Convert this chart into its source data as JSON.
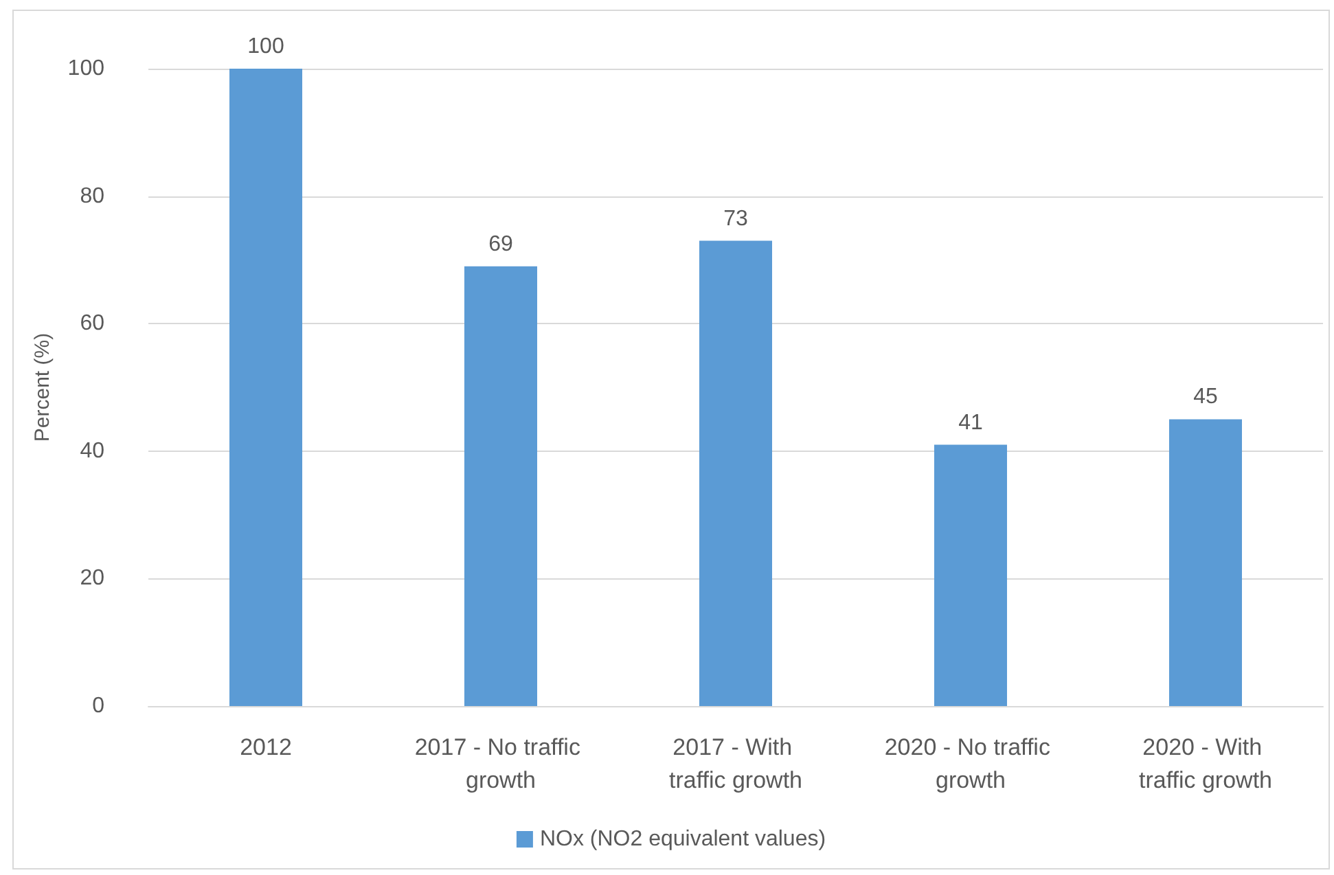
{
  "chart_data": {
    "type": "bar",
    "ylabel": "Percent (%)",
    "categories": [
      "2012",
      "2017 - No traffic growth",
      "2017 - With traffic growth",
      "2020 - No traffic growth",
      "2020 - With traffic growth"
    ],
    "series": [
      {
        "name": "NOx (NO2 equivalent values)",
        "color": "#5b9bd5",
        "values": [
          100,
          69,
          73,
          41,
          45
        ]
      }
    ],
    "ylim": [
      0,
      100
    ],
    "yticks": [
      0,
      20,
      40,
      60,
      80,
      100
    ],
    "grid": "y",
    "legend": "bottom",
    "data_labels": true
  }
}
